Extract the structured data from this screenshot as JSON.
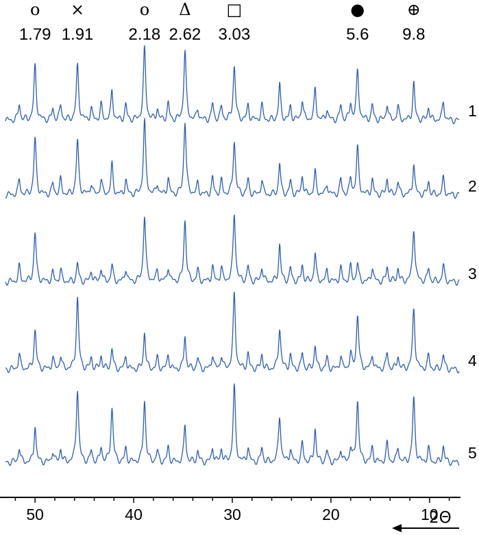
{
  "chart_data": {
    "type": "line",
    "title": "",
    "xlabel": "2Θ",
    "ylabel": "",
    "x_direction": "decreasing",
    "xlim": [
      53,
      7
    ],
    "x_ticks": [
      50,
      40,
      30,
      20,
      10
    ],
    "line_color": "#2a5cad",
    "axis_color": "#000000",
    "grid": false,
    "peak_annotations": [
      {
        "symbol": "o",
        "d_value": "1.79",
        "two_theta": 50.0
      },
      {
        "symbol": "×",
        "d_value": "1.91",
        "two_theta": 45.7
      },
      {
        "symbol": "o",
        "d_value": "2.18",
        "two_theta": 38.9
      },
      {
        "symbol": "Δ",
        "d_value": "2.62",
        "two_theta": 34.8
      },
      {
        "symbol": "□",
        "d_value": "3.03",
        "two_theta": 29.8
      },
      {
        "symbol": "●",
        "d_value": "5.6",
        "two_theta": 17.3
      },
      {
        "symbol": "⊕",
        "d_value": "9.8",
        "two_theta": 11.6
      }
    ],
    "series": [
      {
        "name": "1",
        "peaks": [
          [
            51.6,
            0.22
          ],
          [
            50.0,
            0.72
          ],
          [
            48.2,
            0.15
          ],
          [
            47.4,
            0.2
          ],
          [
            45.7,
            0.72
          ],
          [
            44.3,
            0.15
          ],
          [
            43.3,
            0.2
          ],
          [
            42.2,
            0.4
          ],
          [
            40.8,
            0.2
          ],
          [
            38.9,
            0.95
          ],
          [
            37.6,
            0.15
          ],
          [
            36.5,
            0.22
          ],
          [
            34.8,
            0.92
          ],
          [
            33.5,
            0.15
          ],
          [
            32.0,
            0.22
          ],
          [
            31.1,
            0.18
          ],
          [
            29.8,
            0.72
          ],
          [
            28.4,
            0.2
          ],
          [
            27.0,
            0.2
          ],
          [
            25.2,
            0.48
          ],
          [
            24.1,
            0.18
          ],
          [
            22.9,
            0.28
          ],
          [
            21.6,
            0.42
          ],
          [
            20.4,
            0.15
          ],
          [
            19.0,
            0.2
          ],
          [
            18.0,
            0.22
          ],
          [
            17.3,
            0.65
          ],
          [
            15.8,
            0.2
          ],
          [
            14.3,
            0.22
          ],
          [
            13.2,
            0.18
          ],
          [
            11.6,
            0.5
          ],
          [
            10.1,
            0.18
          ],
          [
            8.6,
            0.25
          ]
        ]
      },
      {
        "name": "2",
        "peaks": [
          [
            51.6,
            0.2
          ],
          [
            50.0,
            0.75
          ],
          [
            48.2,
            0.15
          ],
          [
            47.4,
            0.2
          ],
          [
            45.7,
            0.72
          ],
          [
            44.3,
            0.15
          ],
          [
            43.3,
            0.2
          ],
          [
            42.2,
            0.4
          ],
          [
            40.8,
            0.2
          ],
          [
            38.9,
            0.98
          ],
          [
            37.6,
            0.15
          ],
          [
            36.5,
            0.22
          ],
          [
            34.8,
            0.98
          ],
          [
            33.5,
            0.15
          ],
          [
            32.0,
            0.22
          ],
          [
            31.1,
            0.18
          ],
          [
            29.8,
            0.72
          ],
          [
            28.4,
            0.2
          ],
          [
            27.0,
            0.2
          ],
          [
            25.2,
            0.42
          ],
          [
            24.1,
            0.18
          ],
          [
            22.9,
            0.26
          ],
          [
            21.6,
            0.3
          ],
          [
            20.4,
            0.15
          ],
          [
            19.0,
            0.2
          ],
          [
            18.0,
            0.22
          ],
          [
            17.3,
            0.62
          ],
          [
            15.8,
            0.2
          ],
          [
            14.3,
            0.22
          ],
          [
            13.2,
            0.18
          ],
          [
            11.6,
            0.42
          ],
          [
            10.1,
            0.18
          ],
          [
            8.6,
            0.22
          ]
        ]
      },
      {
        "name": "3",
        "peaks": [
          [
            51.6,
            0.2
          ],
          [
            50.0,
            0.65
          ],
          [
            48.2,
            0.12
          ],
          [
            47.4,
            0.15
          ],
          [
            45.7,
            0.25
          ],
          [
            44.3,
            0.15
          ],
          [
            43.3,
            0.18
          ],
          [
            42.2,
            0.22
          ],
          [
            40.8,
            0.18
          ],
          [
            38.9,
            0.88
          ],
          [
            37.6,
            0.15
          ],
          [
            36.5,
            0.2
          ],
          [
            34.8,
            0.82
          ],
          [
            33.5,
            0.15
          ],
          [
            32.0,
            0.2
          ],
          [
            31.1,
            0.18
          ],
          [
            29.8,
            0.92
          ],
          [
            28.4,
            0.2
          ],
          [
            27.0,
            0.2
          ],
          [
            25.2,
            0.5
          ],
          [
            24.1,
            0.18
          ],
          [
            22.9,
            0.22
          ],
          [
            21.6,
            0.38
          ],
          [
            20.4,
            0.15
          ],
          [
            19.0,
            0.18
          ],
          [
            18.0,
            0.2
          ],
          [
            17.3,
            0.25
          ],
          [
            15.8,
            0.2
          ],
          [
            14.3,
            0.2
          ],
          [
            13.2,
            0.18
          ],
          [
            11.6,
            0.72
          ],
          [
            10.1,
            0.18
          ],
          [
            8.6,
            0.22
          ]
        ]
      },
      {
        "name": "4",
        "peaks": [
          [
            51.6,
            0.2
          ],
          [
            50.0,
            0.52
          ],
          [
            48.2,
            0.15
          ],
          [
            47.4,
            0.18
          ],
          [
            45.7,
            0.95
          ],
          [
            44.3,
            0.15
          ],
          [
            43.3,
            0.18
          ],
          [
            42.2,
            0.28
          ],
          [
            40.8,
            0.18
          ],
          [
            38.9,
            0.5
          ],
          [
            37.6,
            0.15
          ],
          [
            36.5,
            0.2
          ],
          [
            34.8,
            0.45
          ],
          [
            33.5,
            0.15
          ],
          [
            32.0,
            0.2
          ],
          [
            31.1,
            0.18
          ],
          [
            29.8,
            1.0
          ],
          [
            28.4,
            0.2
          ],
          [
            27.0,
            0.2
          ],
          [
            25.2,
            0.55
          ],
          [
            24.1,
            0.18
          ],
          [
            22.9,
            0.22
          ],
          [
            21.6,
            0.32
          ],
          [
            20.4,
            0.15
          ],
          [
            19.0,
            0.18
          ],
          [
            18.0,
            0.2
          ],
          [
            17.3,
            0.72
          ],
          [
            15.8,
            0.2
          ],
          [
            14.3,
            0.22
          ],
          [
            13.2,
            0.18
          ],
          [
            11.6,
            0.8
          ],
          [
            10.1,
            0.18
          ],
          [
            8.6,
            0.2
          ]
        ]
      },
      {
        "name": "5",
        "peaks": [
          [
            51.6,
            0.2
          ],
          [
            50.0,
            0.5
          ],
          [
            48.2,
            0.15
          ],
          [
            47.4,
            0.18
          ],
          [
            45.7,
            0.98
          ],
          [
            44.3,
            0.15
          ],
          [
            43.3,
            0.2
          ],
          [
            42.2,
            0.72
          ],
          [
            40.8,
            0.18
          ],
          [
            38.9,
            0.82
          ],
          [
            37.6,
            0.15
          ],
          [
            36.5,
            0.2
          ],
          [
            34.8,
            0.5
          ],
          [
            33.5,
            0.15
          ],
          [
            32.0,
            0.2
          ],
          [
            31.1,
            0.18
          ],
          [
            29.8,
            1.0
          ],
          [
            28.4,
            0.2
          ],
          [
            27.0,
            0.2
          ],
          [
            25.2,
            0.62
          ],
          [
            24.1,
            0.18
          ],
          [
            22.9,
            0.25
          ],
          [
            21.6,
            0.45
          ],
          [
            20.4,
            0.15
          ],
          [
            19.0,
            0.18
          ],
          [
            18.0,
            0.2
          ],
          [
            17.3,
            0.82
          ],
          [
            15.8,
            0.2
          ],
          [
            14.3,
            0.25
          ],
          [
            13.2,
            0.2
          ],
          [
            11.6,
            0.85
          ],
          [
            10.1,
            0.18
          ],
          [
            8.6,
            0.22
          ]
        ]
      }
    ]
  }
}
